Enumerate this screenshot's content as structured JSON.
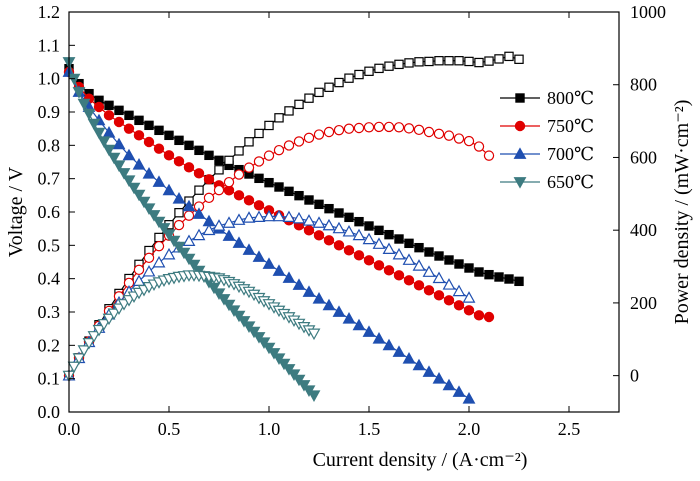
{
  "chart_data": {
    "type": "scatter",
    "xlabel": "Current density / (A·cm⁻²)",
    "ylabel_left": "Voltage / V",
    "ylabel_right": "Power density / (mW·cm⁻²)",
    "xlim": [
      0,
      2.75
    ],
    "ylim_left": [
      0,
      1.2
    ],
    "ylim_right": [
      -100,
      1000
    ],
    "x_ticks": [
      "0.0",
      "0.5",
      "1.0",
      "1.5",
      "2.0",
      "2.5"
    ],
    "y_left_ticks": [
      "0.0",
      "0.1",
      "0.2",
      "0.3",
      "0.4",
      "0.5",
      "0.6",
      "0.7",
      "0.8",
      "0.9",
      "1.0",
      "1.1",
      "1.2"
    ],
    "y_right_ticks": [
      "0",
      "200",
      "400",
      "600",
      "800",
      "1000"
    ],
    "grid": false,
    "legend_position": "top-right",
    "series": [
      {
        "name": "800℃",
        "color": "#000000",
        "marker": "square",
        "voltage": {
          "x": [
            0.0,
            0.05,
            0.1,
            0.15,
            0.2,
            0.25,
            0.3,
            0.35,
            0.4,
            0.45,
            0.5,
            0.55,
            0.6,
            0.65,
            0.7,
            0.75,
            0.8,
            0.85,
            0.9,
            0.95,
            1.0,
            1.05,
            1.1,
            1.15,
            1.2,
            1.25,
            1.3,
            1.35,
            1.4,
            1.45,
            1.5,
            1.55,
            1.6,
            1.65,
            1.7,
            1.75,
            1.8,
            1.85,
            1.9,
            1.95,
            2.0,
            2.05,
            2.1,
            2.15,
            2.2,
            2.25
          ],
          "y": [
            1.03,
            0.985,
            0.955,
            0.935,
            0.92,
            0.905,
            0.89,
            0.875,
            0.86,
            0.845,
            0.83,
            0.815,
            0.8,
            0.785,
            0.77,
            0.755,
            0.74,
            0.727,
            0.714,
            0.701,
            0.688,
            0.675,
            0.662,
            0.649,
            0.636,
            0.623,
            0.61,
            0.597,
            0.584,
            0.571,
            0.558,
            0.545,
            0.532,
            0.519,
            0.506,
            0.493,
            0.48,
            0.468,
            0.456,
            0.444,
            0.432,
            0.42,
            0.412,
            0.405,
            0.399,
            0.392
          ]
        },
        "power": {
          "x": [
            0.0,
            0.05,
            0.1,
            0.15,
            0.2,
            0.25,
            0.3,
            0.35,
            0.4,
            0.45,
            0.5,
            0.55,
            0.6,
            0.65,
            0.7,
            0.75,
            0.8,
            0.85,
            0.9,
            0.95,
            1.0,
            1.05,
            1.1,
            1.15,
            1.2,
            1.25,
            1.3,
            1.35,
            1.4,
            1.45,
            1.5,
            1.55,
            1.6,
            1.65,
            1.7,
            1.75,
            1.8,
            1.85,
            1.9,
            1.95,
            2.0,
            2.05,
            2.1,
            2.15,
            2.2,
            2.25
          ],
          "y": [
            0,
            49,
            95,
            140,
            184,
            226,
            267,
            306,
            344,
            380,
            415,
            448,
            480,
            510,
            539,
            566,
            592,
            618,
            643,
            666,
            688,
            709,
            728,
            746,
            763,
            779,
            793,
            806,
            818,
            828,
            837,
            845,
            851,
            856,
            860,
            863,
            864,
            866,
            866,
            866,
            864,
            861,
            865,
            871,
            878,
            870
          ]
        }
      },
      {
        "name": "750℃",
        "color": "#e00000",
        "marker": "circle",
        "voltage": {
          "x": [
            0.0,
            0.05,
            0.1,
            0.15,
            0.2,
            0.25,
            0.3,
            0.35,
            0.4,
            0.45,
            0.5,
            0.55,
            0.6,
            0.65,
            0.7,
            0.75,
            0.8,
            0.85,
            0.9,
            0.95,
            1.0,
            1.05,
            1.1,
            1.15,
            1.2,
            1.25,
            1.3,
            1.35,
            1.4,
            1.45,
            1.5,
            1.55,
            1.6,
            1.65,
            1.7,
            1.75,
            1.8,
            1.85,
            1.9,
            1.95,
            2.0,
            2.05,
            2.1
          ],
          "y": [
            1.02,
            0.975,
            0.94,
            0.915,
            0.89,
            0.87,
            0.85,
            0.83,
            0.81,
            0.79,
            0.77,
            0.752,
            0.734,
            0.716,
            0.698,
            0.68,
            0.665,
            0.65,
            0.635,
            0.62,
            0.605,
            0.59,
            0.575,
            0.56,
            0.545,
            0.53,
            0.515,
            0.5,
            0.485,
            0.47,
            0.455,
            0.44,
            0.425,
            0.41,
            0.395,
            0.38,
            0.365,
            0.35,
            0.335,
            0.32,
            0.305,
            0.29,
            0.285
          ]
        },
        "power": {
          "x": [
            0.0,
            0.05,
            0.1,
            0.15,
            0.2,
            0.25,
            0.3,
            0.35,
            0.4,
            0.45,
            0.5,
            0.55,
            0.6,
            0.65,
            0.7,
            0.75,
            0.8,
            0.85,
            0.9,
            0.95,
            1.0,
            1.05,
            1.1,
            1.15,
            1.2,
            1.25,
            1.3,
            1.35,
            1.4,
            1.45,
            1.5,
            1.55,
            1.6,
            1.65,
            1.7,
            1.75,
            1.8,
            1.85,
            1.9,
            1.95,
            2.0,
            2.05,
            2.1
          ],
          "y": [
            0,
            49,
            94,
            137,
            178,
            218,
            255,
            291,
            324,
            356,
            385,
            414,
            440,
            465,
            489,
            510,
            532,
            553,
            572,
            589,
            605,
            620,
            633,
            644,
            654,
            663,
            670,
            675,
            679,
            681,
            683,
            684,
            684,
            683,
            680,
            676,
            670,
            665,
            660,
            652,
            645,
            630,
            605
          ]
        }
      },
      {
        "name": "700℃",
        "color": "#1f4fb0",
        "marker": "triangle-up",
        "voltage": {
          "x": [
            0.0,
            0.05,
            0.1,
            0.15,
            0.2,
            0.25,
            0.3,
            0.35,
            0.4,
            0.45,
            0.5,
            0.55,
            0.6,
            0.65,
            0.7,
            0.75,
            0.8,
            0.85,
            0.9,
            0.95,
            1.0,
            1.05,
            1.1,
            1.15,
            1.2,
            1.25,
            1.3,
            1.35,
            1.4,
            1.45,
            1.5,
            1.55,
            1.6,
            1.65,
            1.7,
            1.75,
            1.8,
            1.85,
            1.9,
            1.95,
            2.0
          ],
          "y": [
            1.02,
            0.96,
            0.915,
            0.875,
            0.838,
            0.803,
            0.77,
            0.742,
            0.715,
            0.69,
            0.665,
            0.64,
            0.617,
            0.594,
            0.572,
            0.55,
            0.528,
            0.507,
            0.486,
            0.465,
            0.444,
            0.423,
            0.402,
            0.381,
            0.36,
            0.34,
            0.32,
            0.3,
            0.28,
            0.26,
            0.24,
            0.22,
            0.2,
            0.18,
            0.16,
            0.14,
            0.12,
            0.1,
            0.08,
            0.06,
            0.04
          ]
        },
        "power": {
          "x": [
            0.0,
            0.05,
            0.1,
            0.15,
            0.2,
            0.25,
            0.3,
            0.35,
            0.4,
            0.45,
            0.5,
            0.55,
            0.6,
            0.65,
            0.7,
            0.75,
            0.8,
            0.85,
            0.9,
            0.95,
            1.0,
            1.05,
            1.1,
            1.15,
            1.2,
            1.25,
            1.3,
            1.35,
            1.4,
            1.45,
            1.5,
            1.55,
            1.6,
            1.65,
            1.7,
            1.75,
            1.8,
            1.85,
            1.9,
            1.95,
            2.0
          ],
          "y": [
            0,
            48,
            92,
            131,
            168,
            201,
            231,
            260,
            286,
            311,
            333,
            352,
            370,
            386,
            400,
            412,
            420,
            428,
            434,
            436,
            438,
            438,
            436,
            432,
            426,
            420,
            413,
            405,
            396,
            386,
            375,
            362,
            348,
            333,
            318,
            302,
            285,
            268,
            250,
            232,
            214
          ]
        }
      },
      {
        "name": "650℃",
        "color": "#3d7b80",
        "marker": "triangle-down",
        "voltage": {
          "x": [
            0.0,
            0.025,
            0.05,
            0.075,
            0.1,
            0.125,
            0.15,
            0.175,
            0.2,
            0.225,
            0.25,
            0.275,
            0.3,
            0.325,
            0.35,
            0.375,
            0.4,
            0.425,
            0.45,
            0.475,
            0.5,
            0.525,
            0.55,
            0.575,
            0.6,
            0.625,
            0.65,
            0.675,
            0.7,
            0.725,
            0.75,
            0.775,
            0.8,
            0.825,
            0.85,
            0.875,
            0.9,
            0.925,
            0.95,
            0.975,
            1.0,
            1.025,
            1.05,
            1.075,
            1.1,
            1.125,
            1.15,
            1.175,
            1.2,
            1.225
          ],
          "y": [
            1.05,
            1.0,
            0.96,
            0.925,
            0.895,
            0.865,
            0.838,
            0.812,
            0.787,
            0.763,
            0.74,
            0.717,
            0.695,
            0.673,
            0.652,
            0.631,
            0.611,
            0.591,
            0.571,
            0.552,
            0.533,
            0.514,
            0.496,
            0.478,
            0.46,
            0.442,
            0.424,
            0.407,
            0.39,
            0.373,
            0.356,
            0.339,
            0.322,
            0.305,
            0.289,
            0.273,
            0.257,
            0.241,
            0.225,
            0.209,
            0.193,
            0.177,
            0.161,
            0.145,
            0.129,
            0.113,
            0.097,
            0.081,
            0.065,
            0.05
          ]
        },
        "power": {
          "x": [
            0.0,
            0.025,
            0.05,
            0.075,
            0.1,
            0.125,
            0.15,
            0.175,
            0.2,
            0.225,
            0.25,
            0.275,
            0.3,
            0.325,
            0.35,
            0.375,
            0.4,
            0.425,
            0.45,
            0.475,
            0.5,
            0.525,
            0.55,
            0.575,
            0.6,
            0.625,
            0.65,
            0.675,
            0.7,
            0.725,
            0.75,
            0.775,
            0.8,
            0.825,
            0.85,
            0.875,
            0.9,
            0.925,
            0.95,
            0.975,
            1.0,
            1.025,
            1.05,
            1.075,
            1.1,
            1.125,
            1.15,
            1.175,
            1.2,
            1.225
          ],
          "y": [
            0,
            25,
            48,
            70,
            90,
            109,
            126,
            142,
            157,
            171,
            185,
            197,
            208,
            218,
            228,
            236,
            244,
            251,
            257,
            262,
            266,
            269,
            272,
            274,
            276,
            276,
            275,
            274,
            272,
            270,
            268,
            263,
            258,
            252,
            245,
            238,
            231,
            223,
            214,
            205,
            197,
            188,
            179,
            170,
            161,
            152,
            143,
            134,
            125,
            116
          ]
        }
      }
    ]
  }
}
